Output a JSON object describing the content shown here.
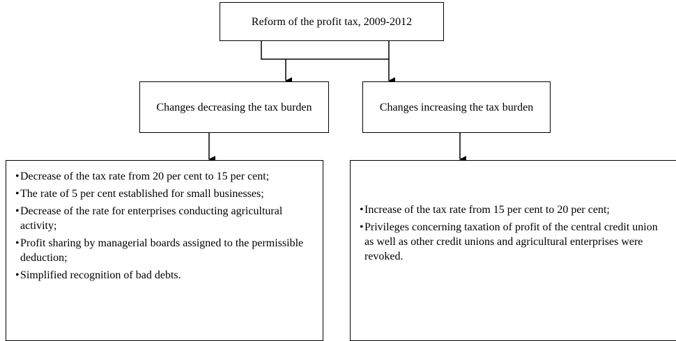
{
  "nodes": [
    {
      "label": "Reform of the profit tax, 2009-2012"
    },
    {
      "label": "Changes decreasing the tax burden"
    },
    {
      "label": "Changes increasing the tax burden"
    }
  ],
  "lists": [
    {
      "items": [
        "Decrease of the tax rate from 20 per cent to 15 per cent;",
        "The rate of 5 per cent established for small businesses;",
        "Decrease of the rate for enterprises conducting agricultural activity;",
        "Profit sharing by managerial boards assigned to the permissible deduction;",
        "Simplified recognition of bad debts."
      ]
    },
    {
      "items": [
        "Increase of the tax rate from 15 per cent to 20 per cent;",
        "Privileges concerning taxation of profit of the central credit union as well as other credit unions and agricultural enterprises were revoked."
      ]
    }
  ]
}
